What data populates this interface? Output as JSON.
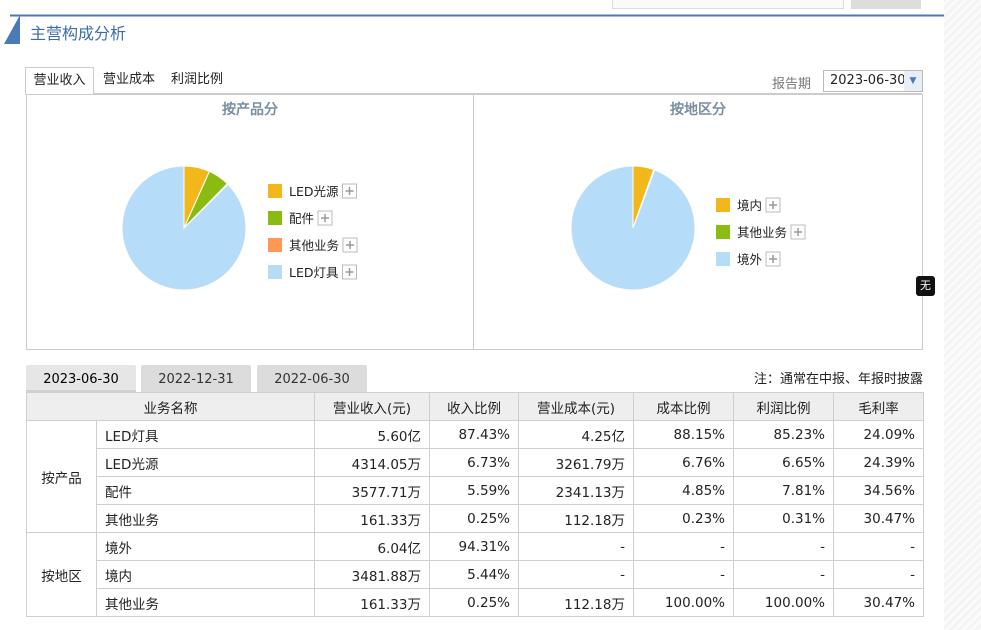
{
  "section_title": "主营构成分析",
  "tabs": [
    "营业收入",
    "营业成本",
    "利润比例"
  ],
  "report_period": {
    "label": "报告期",
    "value": "2023-06-30"
  },
  "side_badge": "无",
  "chart_data": [
    {
      "type": "pie",
      "title": "按产品分",
      "series": [
        {
          "name": "LED光源",
          "color": "#f2b81b",
          "values": [
            6.73
          ]
        },
        {
          "name": "配件",
          "color": "#8bbb10",
          "values": [
            5.59
          ]
        },
        {
          "name": "其他业务",
          "color": "#ff9857",
          "values": [
            0.25
          ]
        },
        {
          "name": "LED灯具",
          "color": "#b5dcf9",
          "values": [
            87.43
          ]
        }
      ]
    },
    {
      "type": "pie",
      "title": "按地区分",
      "series": [
        {
          "name": "境内",
          "color": "#f2b81b",
          "values": [
            5.44
          ]
        },
        {
          "name": "其他业务",
          "color": "#8bbb10",
          "values": [
            0.25
          ]
        },
        {
          "name": "境外",
          "color": "#b5dcf9",
          "values": [
            94.31
          ]
        }
      ]
    }
  ],
  "date_tabs": [
    "2023-06-30",
    "2022-12-31",
    "2022-06-30"
  ],
  "note": "注：通常在中报、年报时披露",
  "table": {
    "header": [
      "业务名称",
      "营业收入(元)",
      "收入比例",
      "营业成本(元)",
      "成本比例",
      "利润比例",
      "毛利率"
    ],
    "groups": [
      {
        "name": "按产品",
        "rows": [
          [
            "LED灯具",
            "5.60亿",
            "87.43%",
            "4.25亿",
            "88.15%",
            "85.23%",
            "24.09%"
          ],
          [
            "LED光源",
            "4314.05万",
            "6.73%",
            "3261.79万",
            "6.76%",
            "6.65%",
            "24.39%"
          ],
          [
            "配件",
            "3577.71万",
            "5.59%",
            "2341.13万",
            "4.85%",
            "7.81%",
            "34.56%"
          ],
          [
            "其他业务",
            "161.33万",
            "0.25%",
            "112.18万",
            "0.23%",
            "0.31%",
            "30.47%"
          ]
        ]
      },
      {
        "name": "按地区",
        "rows": [
          [
            "境外",
            "6.04亿",
            "94.31%",
            "-",
            "-",
            "-",
            "-"
          ],
          [
            "境内",
            "3481.88万",
            "5.44%",
            "-",
            "-",
            "-",
            "-"
          ],
          [
            "其他业务",
            "161.33万",
            "0.25%",
            "112.18万",
            "100.00%",
            "100.00%",
            "30.47%"
          ]
        ]
      }
    ]
  }
}
